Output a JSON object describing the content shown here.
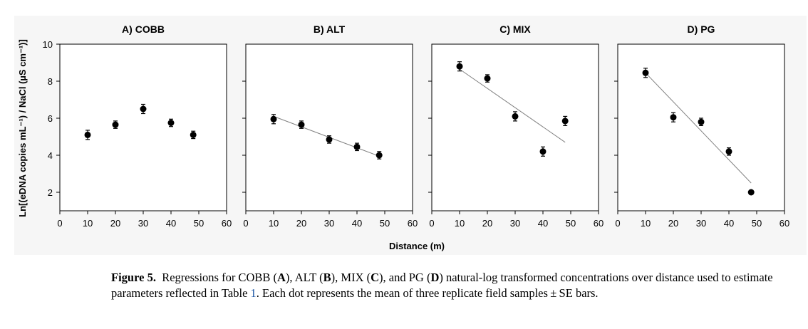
{
  "chart_data": [
    {
      "type": "scatter",
      "title": "A) COBB",
      "x": [
        10,
        20,
        30,
        40,
        48
      ],
      "y": [
        5.1,
        5.65,
        6.5,
        5.75,
        5.1
      ],
      "error": [
        0.25,
        0.2,
        0.25,
        0.2,
        0.2
      ],
      "regression_line": null,
      "xlim": [
        0,
        60
      ],
      "ylim": [
        1,
        10
      ],
      "x_ticks": [
        0,
        10,
        20,
        30,
        40,
        50,
        60
      ],
      "y_ticks": [
        2,
        4,
        6,
        8,
        10
      ]
    },
    {
      "type": "scatter",
      "title": "B) ALT",
      "x": [
        10,
        20,
        30,
        40,
        48
      ],
      "y": [
        5.95,
        5.65,
        4.85,
        4.45,
        4.0
      ],
      "error": [
        0.25,
        0.2,
        0.2,
        0.2,
        0.2
      ],
      "regression_line": {
        "x": [
          10,
          48
        ],
        "y": [
          6.1,
          3.95
        ]
      },
      "xlim": [
        0,
        60
      ],
      "ylim": [
        1,
        10
      ],
      "x_ticks": [
        0,
        10,
        20,
        30,
        40,
        50,
        60
      ],
      "y_ticks": [
        2,
        4,
        6,
        8
      ]
    },
    {
      "type": "scatter",
      "title": "C) MIX",
      "x": [
        10,
        20,
        30,
        40,
        48
      ],
      "y": [
        8.8,
        8.15,
        6.1,
        4.2,
        5.85
      ],
      "error": [
        0.25,
        0.2,
        0.25,
        0.25,
        0.25
      ],
      "regression_line": {
        "x": [
          10,
          48
        ],
        "y": [
          8.65,
          4.7
        ]
      },
      "xlim": [
        0,
        60
      ],
      "ylim": [
        1,
        10
      ],
      "x_ticks": [
        0,
        10,
        20,
        30,
        40,
        50,
        60
      ],
      "y_ticks": [
        2,
        4,
        6,
        8
      ]
    },
    {
      "type": "scatter",
      "title": "D) PG",
      "x": [
        10,
        20,
        30,
        40,
        48
      ],
      "y": [
        8.45,
        6.05,
        5.8,
        4.2,
        2.0
      ],
      "error": [
        0.25,
        0.25,
        0.2,
        0.2,
        0.1
      ],
      "regression_line": {
        "x": [
          10,
          48
        ],
        "y": [
          8.45,
          2.5
        ]
      },
      "xlim": [
        0,
        60
      ],
      "ylim": [
        1,
        10
      ],
      "x_ticks": [
        0,
        10,
        20,
        30,
        40,
        50,
        60
      ],
      "y_ticks": [
        2,
        4,
        6,
        8
      ]
    }
  ],
  "shared": {
    "xlabel": "Distance (m)",
    "ylabel": "Ln[(eDNA copies mL⁻¹) / NaCl (µS cm⁻¹)]",
    "colors": {
      "marker": "#000000",
      "line": "#808080",
      "background": "#f6f6f6"
    }
  },
  "caption": {
    "label": "Figure 5.",
    "p1": "Regressions for COBB (",
    "a": "A",
    "p2": "), ALT (",
    "b": "B",
    "p3": "), MIX (",
    "c": "C",
    "p4": "), and PG (",
    "d": "D",
    "p5": ") natural-log transformed concentrations over distance used to estimate parameters reflected in Table ",
    "table_ref": "1",
    "p6": ". Each dot represents the mean of three replicate field samples ± SE bars."
  }
}
